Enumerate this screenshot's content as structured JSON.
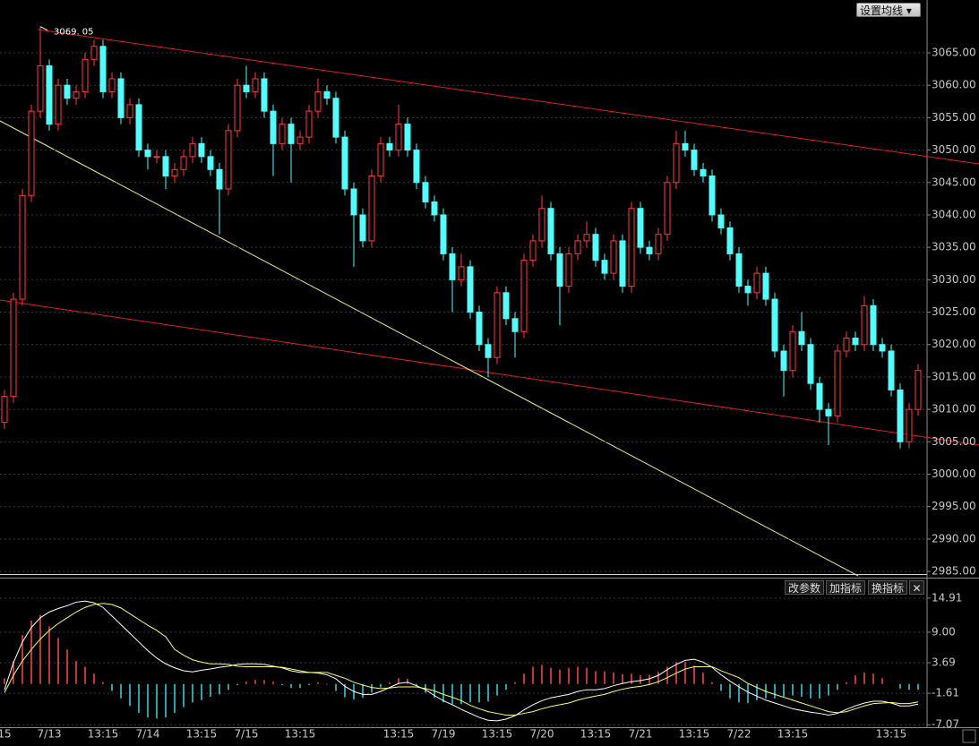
{
  "chart_data": [
    {
      "type": "candlestick",
      "categories": [
        "15",
        null,
        null,
        null,
        null,
        "7/13",
        null,
        null,
        null,
        null,
        null,
        "13:15",
        null,
        null,
        null,
        null,
        "7/14",
        null,
        null,
        null,
        null,
        null,
        "13:15",
        null,
        null,
        null,
        null,
        "7/15",
        null,
        null,
        null,
        null,
        null,
        "13:15",
        null,
        null,
        null,
        null,
        null,
        null,
        null,
        null,
        null,
        null,
        "13:15",
        null,
        null,
        null,
        null,
        "7/19",
        null,
        null,
        null,
        null,
        null,
        "13:15",
        null,
        null,
        null,
        null,
        "7/20",
        null,
        null,
        null,
        null,
        null,
        "13:15",
        null,
        null,
        null,
        null,
        "7/21",
        null,
        null,
        null,
        null,
        null,
        "13:15",
        null,
        null,
        null,
        null,
        "7/22",
        null,
        null,
        null,
        null,
        null,
        "13:15",
        null,
        null,
        null,
        null,
        null,
        null,
        null,
        null,
        null,
        null,
        "13:15",
        null,
        null,
        null
      ],
      "open": [
        3008,
        3012,
        3027,
        3043,
        3056,
        3063,
        3054,
        3060,
        3058,
        3059,
        3064,
        3066,
        3059,
        3061,
        3055,
        3057,
        3050,
        3049,
        3049,
        3046,
        3047,
        3049,
        3051,
        3049,
        3047,
        3044,
        3053,
        3060,
        3059,
        3061,
        3056,
        3051,
        3054,
        3051,
        3052,
        3056,
        3059,
        3058,
        3052,
        3044,
        3040,
        3036,
        3046,
        3051,
        3050,
        3054,
        3050,
        3045,
        3042,
        3040,
        3034,
        3030,
        3032,
        3025,
        3020,
        3018,
        3028,
        3024,
        3022,
        3033,
        3036,
        3041,
        3034,
        3029,
        3034,
        3036,
        3037,
        3033,
        3031,
        3036,
        3029,
        3041,
        3035,
        3034,
        3037,
        3045,
        3051,
        3050,
        3047,
        3046,
        3040,
        3038,
        3034,
        3029,
        3028,
        3031,
        3027,
        3019,
        3016,
        3022,
        3020,
        3014,
        3010,
        3009,
        3019,
        3021,
        3020,
        3026,
        3020,
        3019,
        3013,
        3005,
        3010
      ],
      "high": [
        3013,
        3028,
        3044,
        3057,
        3069.05,
        3064,
        3061,
        3061,
        3060,
        3065,
        3067,
        3067,
        3062,
        3062,
        3058,
        3058,
        3051,
        3050,
        3050,
        3048,
        3050,
        3052,
        3052,
        3050,
        3048,
        3054,
        3061,
        3063,
        3062,
        3062,
        3057,
        3055,
        3055,
        3053,
        3057,
        3061,
        3060,
        3059,
        3053,
        3045,
        3041,
        3047,
        3052,
        3052,
        3057,
        3055,
        3051,
        3046,
        3043,
        3041,
        3035,
        3034,
        3033,
        3026,
        3021,
        3029,
        3029,
        3025,
        3034,
        3037,
        3043,
        3042,
        3035,
        3035,
        3037,
        3039,
        3038,
        3034,
        3037,
        3037,
        3042,
        3042,
        3036,
        3038,
        3046,
        3053,
        3053,
        3051,
        3048,
        3047,
        3041,
        3039,
        3035,
        3030,
        3032,
        3032,
        3028,
        3020,
        3023,
        3025,
        3021,
        3015,
        3011,
        3020,
        3022,
        3022,
        3027.5,
        3027,
        3021,
        3020,
        3014,
        3011,
        3017
      ],
      "low": [
        3007,
        3011,
        3026,
        3042,
        3055,
        3053,
        3053,
        3057,
        3057,
        3058,
        3063,
        3058,
        3058,
        3054,
        3054,
        3049,
        3047,
        3048,
        3044,
        3045,
        3046,
        3048,
        3048,
        3046,
        3037,
        3043,
        3052,
        3058,
        3058,
        3055,
        3046,
        3050,
        3045,
        3050,
        3051,
        3055,
        3057,
        3051,
        3043,
        3032,
        3035,
        3035,
        3045,
        3049,
        3049,
        3049,
        3044,
        3041,
        3039,
        3033,
        3025,
        3029,
        3024,
        3019,
        3015,
        3017,
        3023,
        3018,
        3021,
        3032,
        3035,
        3033,
        3023,
        3028,
        3033,
        3035,
        3032,
        3030,
        3030,
        3028,
        3028,
        3034,
        3033,
        3033,
        3036,
        3044,
        3049,
        3046,
        3045,
        3039,
        3037,
        3033,
        3028,
        3026,
        3027,
        3026,
        3018,
        3012,
        3015,
        3019,
        3013,
        3008,
        3004.5,
        3008,
        3018,
        3019,
        3019,
        3019,
        3018,
        3012,
        3004,
        3004,
        3009
      ],
      "close": [
        3012,
        3027,
        3043,
        3056,
        3063,
        3054,
        3060,
        3058,
        3059,
        3064,
        3066,
        3059,
        3061,
        3055,
        3057,
        3050,
        3049,
        3049,
        3046,
        3047,
        3049,
        3051,
        3049,
        3047,
        3044,
        3053,
        3060,
        3059,
        3061,
        3056,
        3051,
        3054,
        3051,
        3052,
        3056,
        3059,
        3058,
        3052,
        3044,
        3040,
        3036,
        3046,
        3051,
        3050,
        3054,
        3050,
        3045,
        3042,
        3040,
        3034,
        3030,
        3032,
        3025,
        3020,
        3018,
        3028,
        3024,
        3022,
        3033,
        3036,
        3041,
        3034,
        3029,
        3034,
        3036,
        3037,
        3033,
        3031,
        3036,
        3029,
        3041,
        3035,
        3034,
        3037,
        3045,
        3051,
        3050,
        3047,
        3046,
        3040,
        3038,
        3034,
        3029,
        3028,
        3031,
        3027,
        3019,
        3016,
        3022,
        3020,
        3014,
        3010,
        3009,
        3019,
        3021,
        3020,
        3026,
        3020,
        3019,
        3013,
        3005,
        3010,
        3016
      ],
      "max_label": "3069. 05",
      "up_color": "#ff3c3c",
      "down_color": "#54fcfc",
      "ylim": [
        2984.6,
        3073.15
      ],
      "yticks": [
        {
          "value": 3065,
          "label": "3065.00"
        },
        {
          "value": 3060,
          "label": "3060.00"
        },
        {
          "value": 3055,
          "label": "3055.00"
        },
        {
          "value": 3050,
          "label": "3050.00"
        },
        {
          "value": 3045,
          "label": "3045.00"
        },
        {
          "value": 3040,
          "label": "3040.00"
        },
        {
          "value": 3035,
          "label": "3035.00"
        },
        {
          "value": 3030,
          "label": "3030.00"
        },
        {
          "value": 3025,
          "label": "3025.00"
        },
        {
          "value": 3020,
          "label": "3020.00"
        },
        {
          "value": 3015,
          "label": "3015.00"
        },
        {
          "value": 3010,
          "label": "3010.00"
        },
        {
          "value": 3005,
          "label": "3005.00"
        },
        {
          "value": 3000,
          "label": "3000.00"
        },
        {
          "value": 2995,
          "label": "2995.00"
        },
        {
          "value": 2990,
          "label": "2990.00"
        },
        {
          "value": 2985,
          "label": "2985.00"
        }
      ],
      "grid": true,
      "ma_button": "设置均线"
    },
    {
      "type": "macd",
      "histogram": [
        1,
        4,
        8.5,
        11,
        12,
        10,
        8,
        6,
        4,
        3,
        1.8,
        0.3,
        -1.2,
        -2.5,
        -3.8,
        -5,
        -5.8,
        -6,
        -5.8,
        -5,
        -4,
        -3.2,
        -2.8,
        -2.2,
        -1.8,
        -1,
        -0.2,
        0.4,
        0.7,
        0.7,
        0.4,
        -0.2,
        -0.7,
        -0.7,
        -0.2,
        0.3,
        -0.1,
        -1.2,
        -2.3,
        -2.7,
        -2.4,
        -1.5,
        -0.6,
        0.3,
        1,
        0.9,
        -0.3,
        -1.5,
        -2.4,
        -3.2,
        -3.5,
        -3.5,
        -3.2,
        -3.2,
        -3,
        -2,
        -1,
        0.3,
        1.8,
        3,
        3.3,
        2.8,
        2.5,
        2.8,
        3,
        2.8,
        2.2,
        2.2,
        2,
        1.7,
        1.8,
        1.5,
        1.6,
        2.1,
        3,
        3.8,
        3.8,
        3.2,
        2,
        0.3,
        -1.2,
        -2.5,
        -3.2,
        -3.3,
        -2.8,
        -2.5,
        -2.5,
        -2.2,
        -2,
        -2.2,
        -2.5,
        -2.5,
        -2,
        -1,
        0.3,
        1.5,
        2,
        1.8,
        1,
        0,
        -0.8,
        -1,
        -1
      ],
      "lines": [
        {
          "color": "#ffffff",
          "values": [
            -1,
            3.7,
            7.3,
            9.8,
            11.5,
            12.5,
            13.1,
            13.6,
            14.2,
            14.4,
            14.1,
            13.3,
            11.8,
            10.3,
            8.8,
            7.3,
            5.8,
            4.5,
            3.5,
            2.8,
            2.3,
            2.1,
            2.4,
            2.6,
            2.9,
            3.1,
            3.4,
            3.5,
            3.5,
            3.4,
            3.1,
            2.8,
            2.3,
            2,
            2,
            1.9,
            1.6,
            0.9,
            -0.4,
            -1.3,
            -1.8,
            -1.8,
            -1.3,
            -0.6,
            0.1,
            0.3,
            -0.3,
            -1,
            -2,
            -2.9,
            -3.6,
            -4.4,
            -5.1,
            -5.8,
            -6.3,
            -6.4,
            -6.1,
            -5.5,
            -4.5,
            -3.6,
            -2.9,
            -2.4,
            -2.1,
            -1.8,
            -1.3,
            -1,
            -1,
            -0.8,
            -0.3,
            0.1,
            0.4,
            0.6,
            0.9,
            1.5,
            2.5,
            3.4,
            4.1,
            4.3,
            3.8,
            2.9,
            1.6,
            0.5,
            -0.5,
            -1.4,
            -2.1,
            -2.8,
            -3.3,
            -3.8,
            -4.3,
            -4.6,
            -4.9,
            -5.1,
            -5.4,
            -5.1,
            -4.4,
            -3.8,
            -3.3,
            -3,
            -3,
            -3.3,
            -3.8,
            -3.8,
            -3.5
          ]
        },
        {
          "color": "#ffff66",
          "values": [
            -1.5,
            1.5,
            4,
            6,
            7.8,
            9.3,
            10.5,
            11.5,
            12.5,
            13.3,
            13.8,
            14,
            13.8,
            13.2,
            12.2,
            11.2,
            10.2,
            9.3,
            8.2,
            6,
            5,
            4.2,
            3.8,
            3.5,
            3.5,
            3.4,
            3.1,
            3,
            3,
            3,
            3,
            2.9,
            2.6,
            2.3,
            2,
            2,
            2,
            1.5,
            1,
            0.3,
            -0.2,
            -0.6,
            -0.8,
            -0.7,
            -0.5,
            -0.5,
            -0.5,
            -0.8,
            -1.2,
            -1.8,
            -2.3,
            -2.9,
            -3.7,
            -4.3,
            -4.8,
            -5.1,
            -5.4,
            -5.4,
            -5.1,
            -4.8,
            -4.3,
            -3.9,
            -3.6,
            -3.3,
            -2.8,
            -2.4,
            -2.1,
            -1.8,
            -1.3,
            -0.9,
            -0.6,
            -0.4,
            -0.1,
            0.4,
            1.1,
            1.9,
            2.6,
            3,
            3,
            3,
            2.3,
            1.7,
            1.1,
            0.1,
            -0.6,
            -1.3,
            -1.8,
            -2.3,
            -2.8,
            -3.3,
            -3.8,
            -4.3,
            -4.8,
            -5,
            -4.8,
            -4.3,
            -3.8,
            -3.4,
            -3.3,
            -3.2,
            -3.4,
            -3.4,
            -3.1
          ]
        }
      ],
      "up_color": "#ff4a4a",
      "down_color": "#3cd6e6",
      "ylim": [
        -7.5,
        18
      ],
      "yticks": [
        14.91,
        {
          "value": 9,
          "label": "9.00"
        },
        3.69,
        -1.61,
        -7.07
      ],
      "buttons": [
        "改参数",
        "加指标",
        "换指标"
      ]
    }
  ]
}
